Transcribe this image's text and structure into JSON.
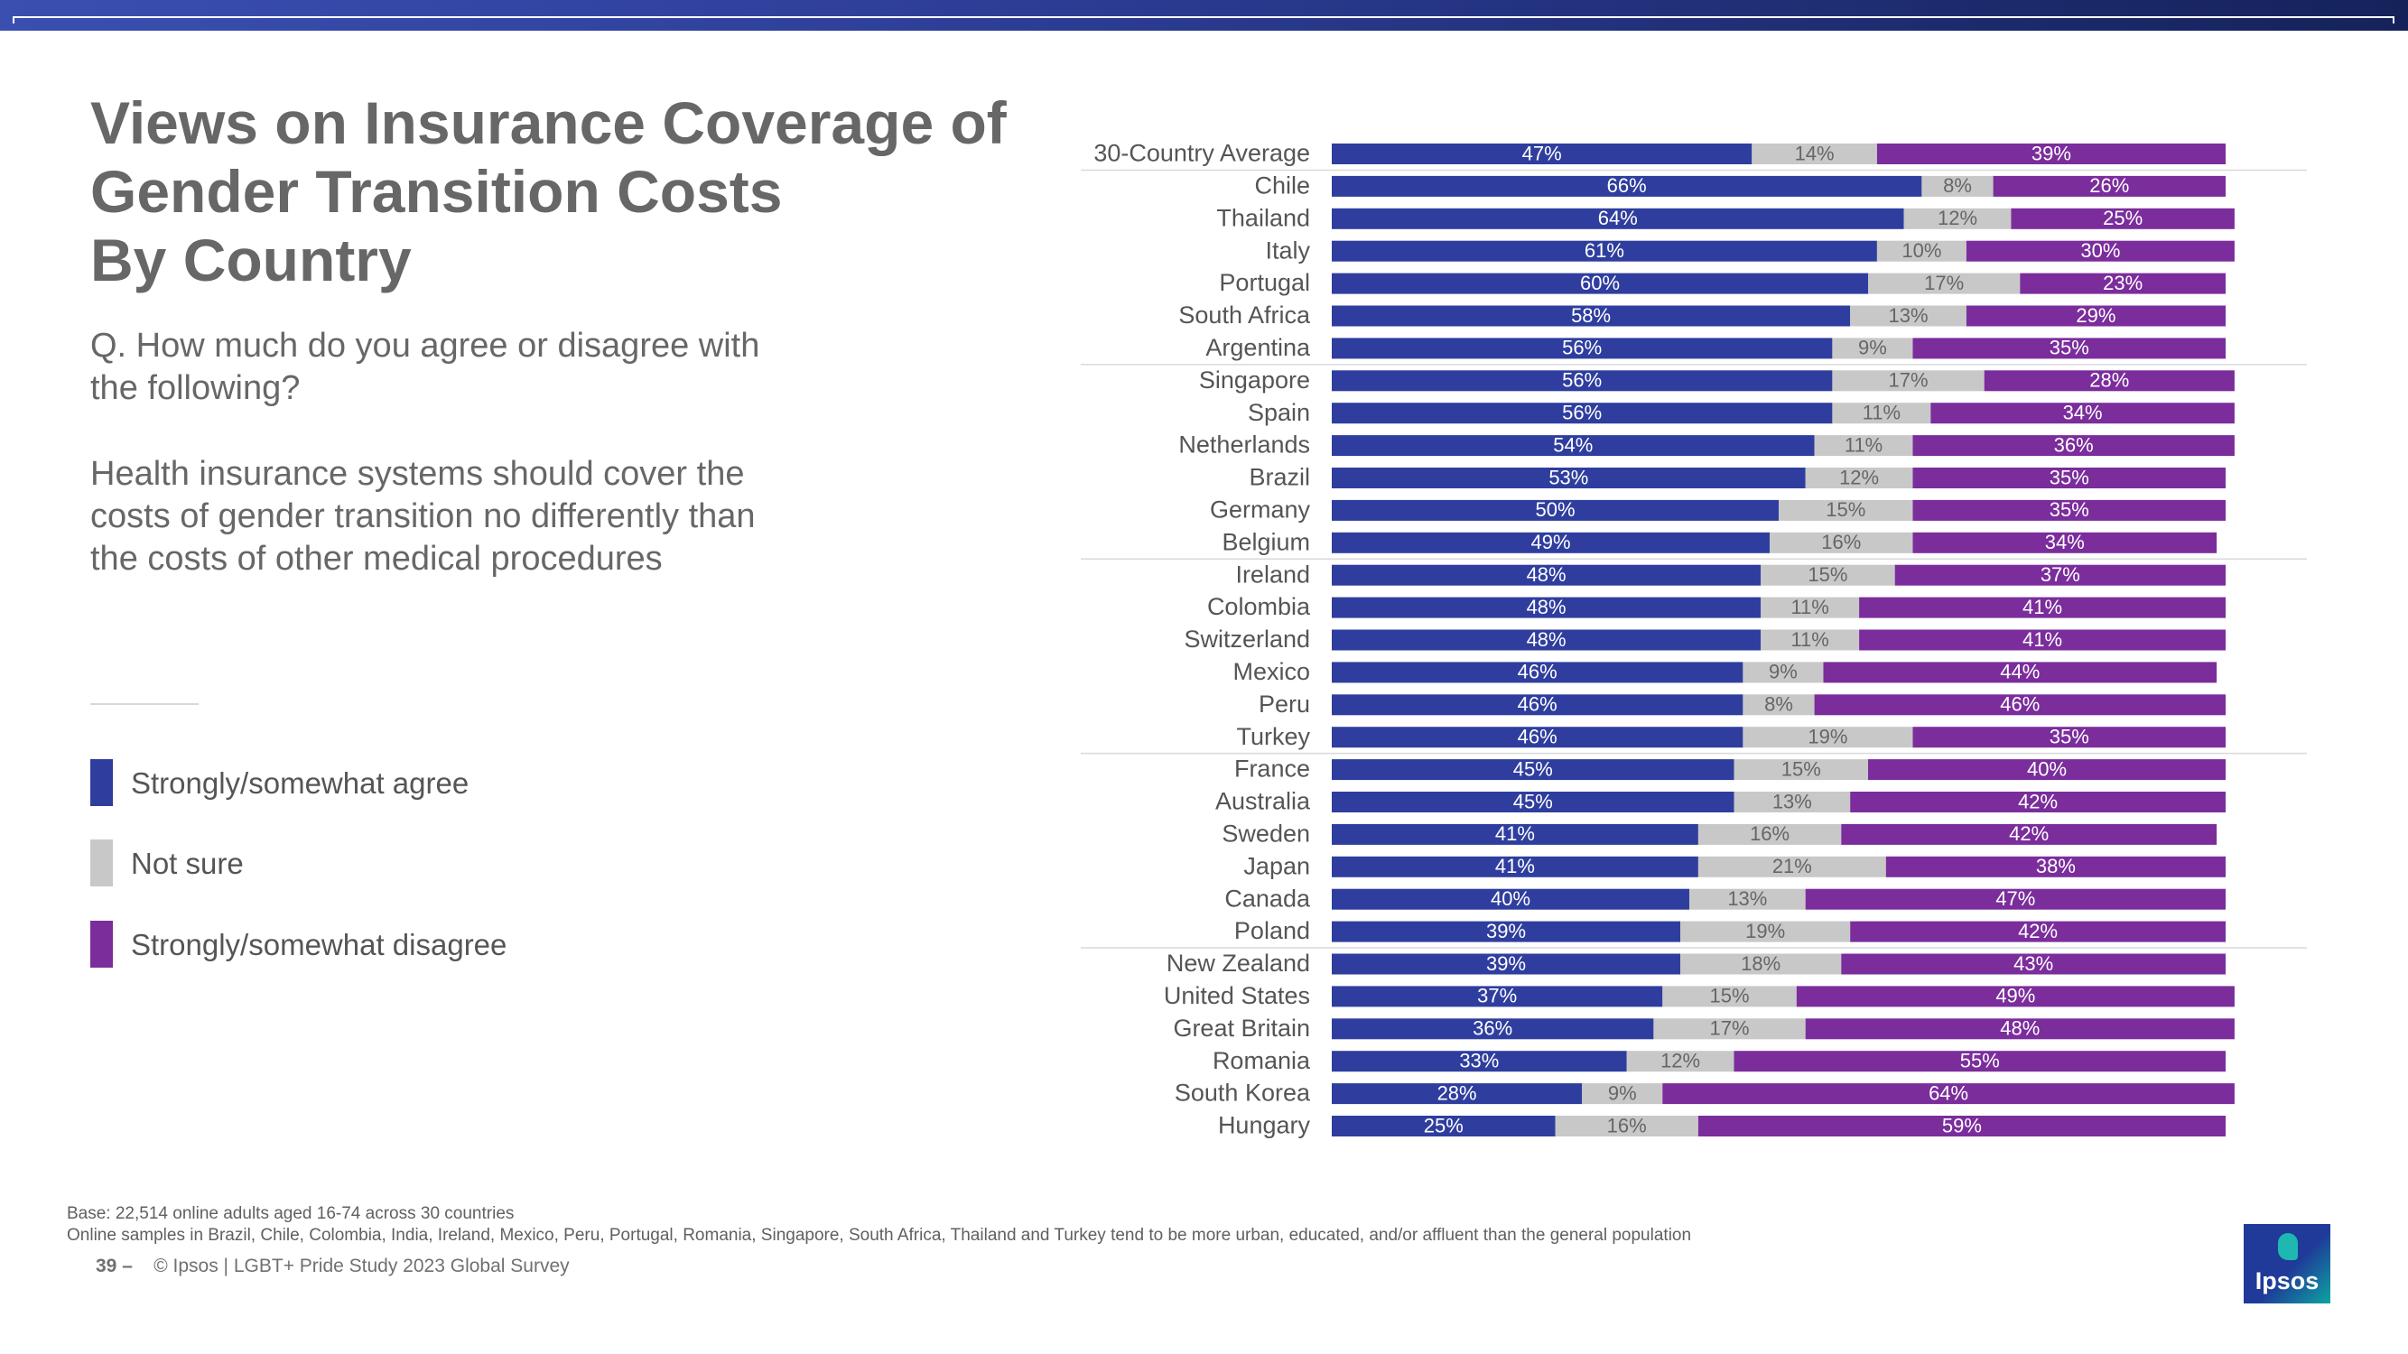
{
  "title": "Views on Insurance Coverage of\nGender Transition Costs\nBy Country",
  "question": "Q. How much do you agree or disagree with the following?",
  "statement": "Health insurance systems should cover the costs of gender transition no differently than the costs of other medical procedures",
  "legend": [
    {
      "label": "Strongly/somewhat agree",
      "color": "#2f3e9e"
    },
    {
      "label": "Not sure",
      "color": "#c8c8c8"
    },
    {
      "label": "Strongly/somewhat disagree",
      "color": "#7b2d9c"
    }
  ],
  "footer": {
    "base": "Base: 22,514 online adults aged 16-74 across 30 countries",
    "note": "Online samples in Brazil, Chile, Colombia, India, Ireland, Mexico, Peru, Portugal, Romania, Singapore, South Africa, Thailand and Turkey tend to be more urban, educated, and/or affluent than the general population",
    "page_number": "39 –",
    "copyright": "© Ipsos | LGBT+ Pride Study 2023 Global Survey"
  },
  "logo_text": "Ipsos",
  "chart_data": {
    "type": "bar",
    "orientation": "horizontal",
    "stacked": true,
    "unit": "%",
    "categories": [
      "30-Country Average",
      "Chile",
      "Thailand",
      "Italy",
      "Portugal",
      "South Africa",
      "Argentina",
      "Singapore",
      "Spain",
      "Netherlands",
      "Brazil",
      "Germany",
      "Belgium",
      "Ireland",
      "Colombia",
      "Switzerland",
      "Mexico",
      "Peru",
      "Turkey",
      "France",
      "Australia",
      "Sweden",
      "Japan",
      "Canada",
      "Poland",
      "New Zealand",
      "United States",
      "Great Britain",
      "Romania",
      "South Korea",
      "Hungary"
    ],
    "series": [
      {
        "name": "Strongly/somewhat agree",
        "color": "#2f3e9e",
        "label_color": "#ffffff",
        "values": [
          47,
          66,
          64,
          61,
          60,
          58,
          56,
          56,
          56,
          54,
          53,
          50,
          49,
          48,
          48,
          48,
          46,
          46,
          46,
          45,
          45,
          41,
          41,
          40,
          39,
          39,
          37,
          36,
          33,
          28,
          25
        ]
      },
      {
        "name": "Not sure",
        "color": "#c8c8c8",
        "label_color": "#666666",
        "values": [
          14,
          8,
          12,
          10,
          17,
          13,
          9,
          17,
          11,
          11,
          12,
          15,
          16,
          15,
          11,
          11,
          9,
          8,
          19,
          15,
          13,
          16,
          21,
          13,
          19,
          18,
          15,
          17,
          12,
          9,
          16
        ]
      },
      {
        "name": "Strongly/somewhat disagree",
        "color": "#7b2d9c",
        "label_color": "#ffffff",
        "values": [
          39,
          26,
          25,
          30,
          23,
          29,
          35,
          28,
          34,
          36,
          35,
          35,
          34,
          37,
          41,
          41,
          44,
          46,
          35,
          40,
          42,
          42,
          38,
          47,
          42,
          43,
          49,
          48,
          55,
          64,
          59
        ]
      }
    ],
    "separators_after": [
      0,
      6,
      12,
      18,
      24
    ],
    "xlim": [
      0,
      100
    ]
  }
}
